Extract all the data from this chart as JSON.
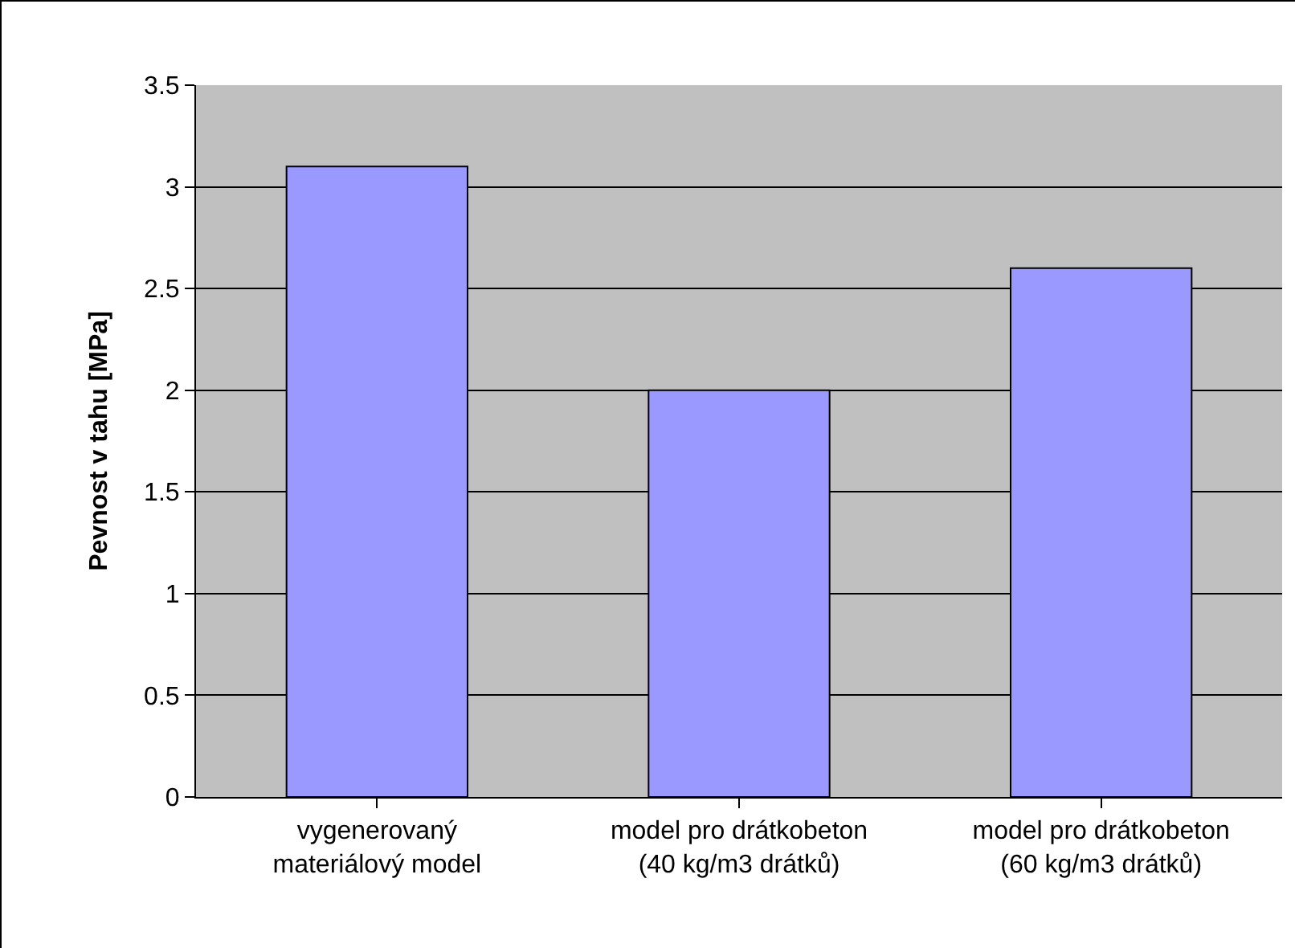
{
  "chart_data": {
    "type": "bar",
    "ylabel": "Pevnost v tahu [MPa]",
    "categories": [
      "vygenerovaný\nmateriálový model",
      "model pro drátkobeton\n(40 kg/m3 drátků)",
      "model pro drátkobeton\n(60 kg/m3 drátků)"
    ],
    "values": [
      3.1,
      2.0,
      2.6
    ],
    "color": "#9999ff",
    "ylim": [
      0,
      3.5
    ],
    "yticks": [
      0,
      0.5,
      1,
      1.5,
      2,
      2.5,
      3,
      3.5
    ],
    "grid": "y"
  }
}
